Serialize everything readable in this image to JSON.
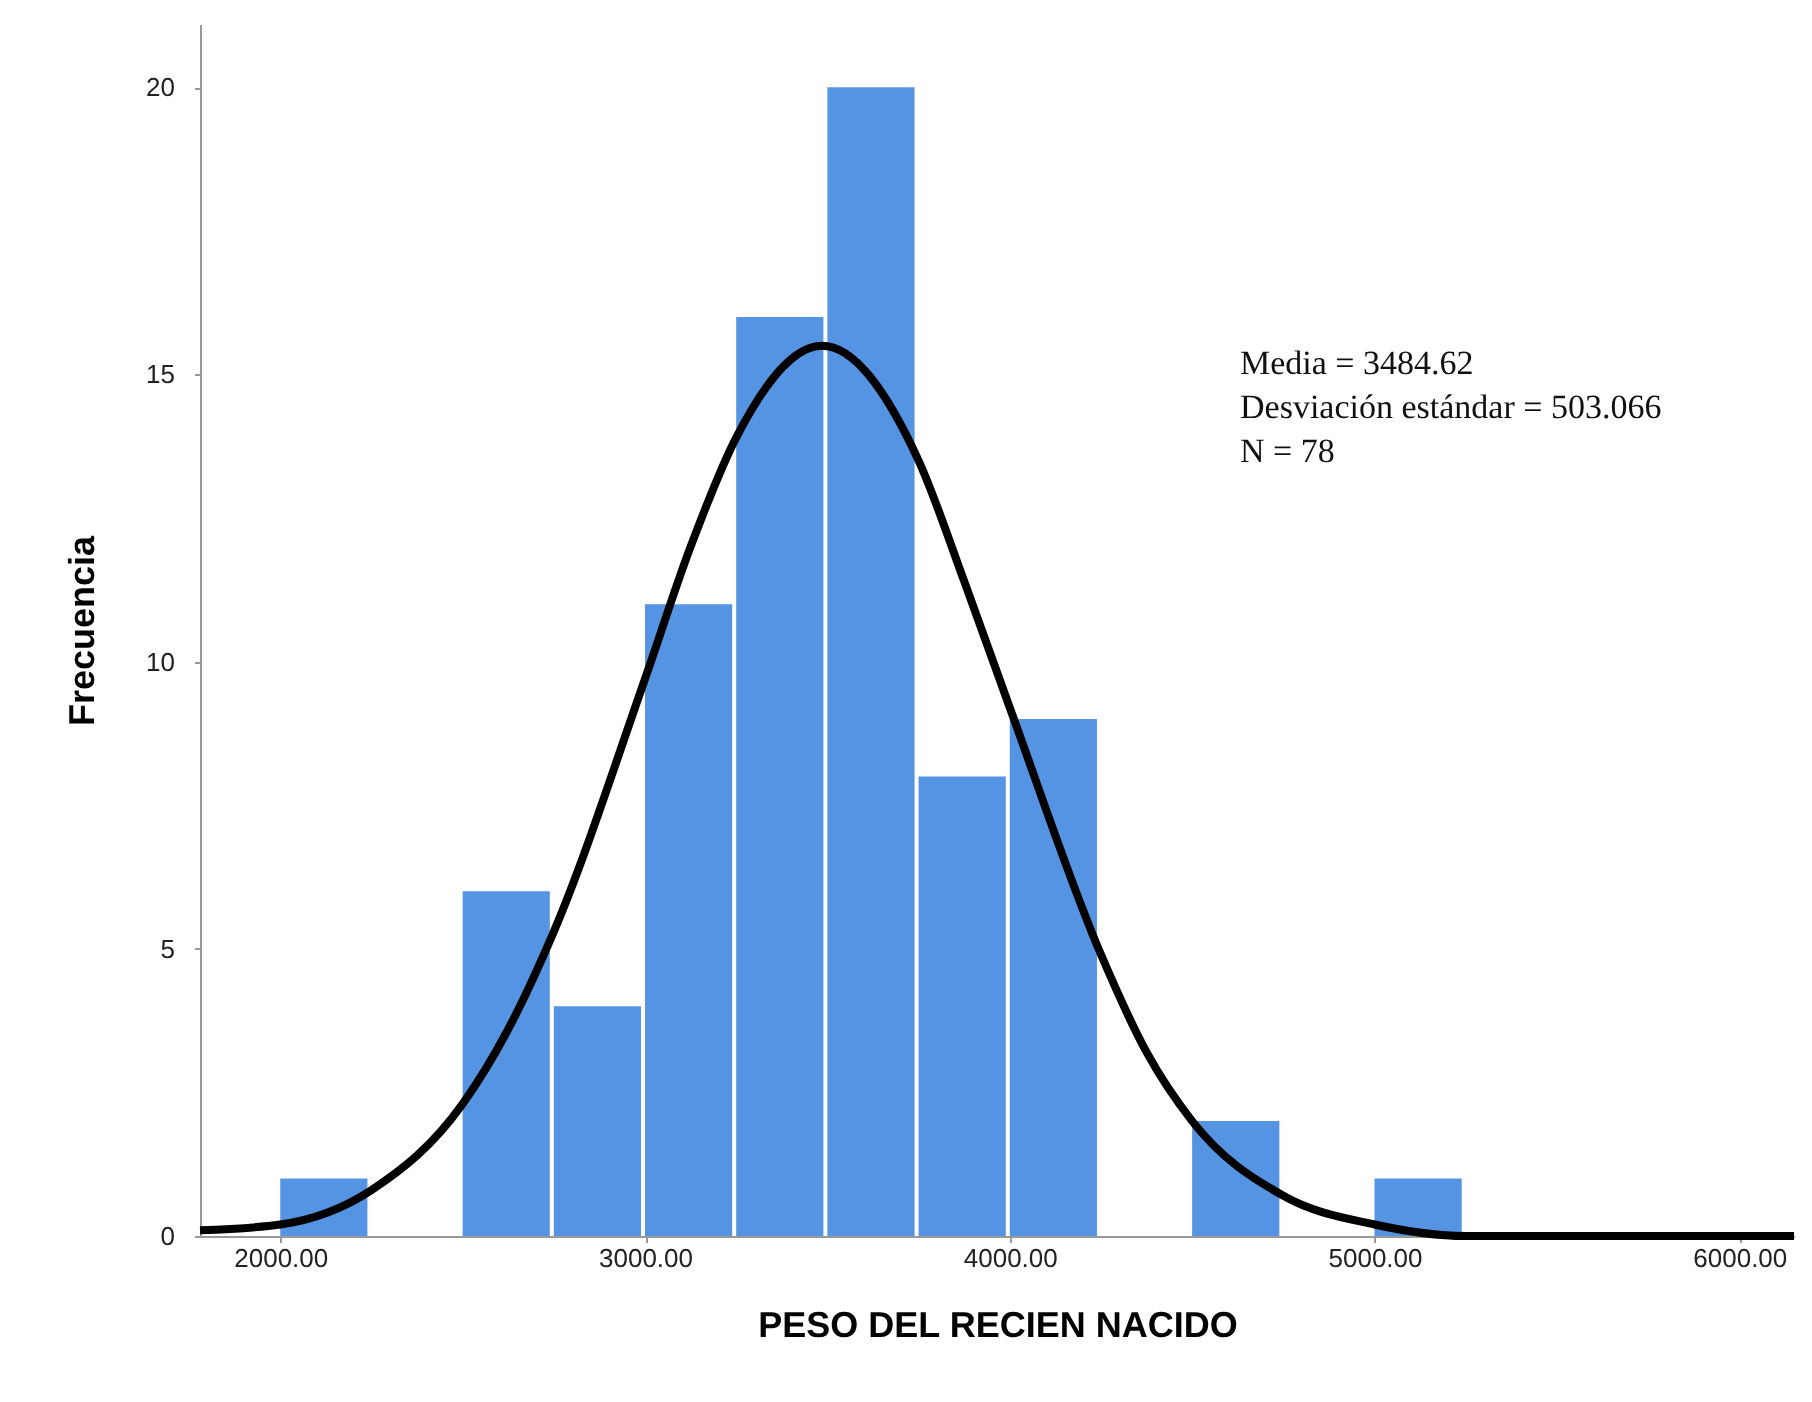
{
  "chart_data": {
    "type": "histogram",
    "xlabel": "PESO DEL RECIEN NACIDO",
    "ylabel": "Frecuencia",
    "xlim": [
      1780,
      6150
    ],
    "ylim": [
      0,
      21.1
    ],
    "xticks": [
      {
        "value": 2000,
        "label": "2000.00"
      },
      {
        "value": 3000,
        "label": "3000.00"
      },
      {
        "value": 4000,
        "label": "4000.00"
      },
      {
        "value": 5000,
        "label": "5000.00"
      },
      {
        "value": 6000,
        "label": "6000.00"
      }
    ],
    "yticks": [
      0,
      5,
      10,
      15,
      20
    ],
    "grid": false,
    "series": [
      {
        "color": "#5593e3",
        "bins": [
          2000,
          2250,
          2500,
          2750,
          3000,
          3250,
          3500,
          3750,
          4000,
          4250,
          4500,
          4750,
          5000,
          5250
        ],
        "values": [
          1,
          0,
          6,
          4,
          11,
          16,
          20,
          8,
          9,
          0,
          2,
          0,
          1
        ]
      },
      {
        "type": "line",
        "color": "#000000",
        "x": [
          1780,
          2000,
          2250,
          2500,
          2625,
          2750,
          3000,
          3125,
          3250,
          3485,
          3750,
          3875,
          4000,
          4250,
          4375,
          4500,
          4750,
          5000,
          5250,
          5500,
          5800,
          6150
        ],
        "values": [
          0.1,
          0.2,
          0.8,
          2.3,
          3.6,
          5.3,
          9.7,
          12.0,
          13.9,
          15.5,
          13.5,
          11.4,
          9.2,
          4.9,
          3.2,
          2.0,
          0.7,
          0.2,
          0.0,
          0.0,
          0.0,
          0.0
        ]
      }
    ],
    "annotations": [
      "Media = 3484.62",
      "Desviación estándar = 503.066",
      "N = 78"
    ]
  }
}
